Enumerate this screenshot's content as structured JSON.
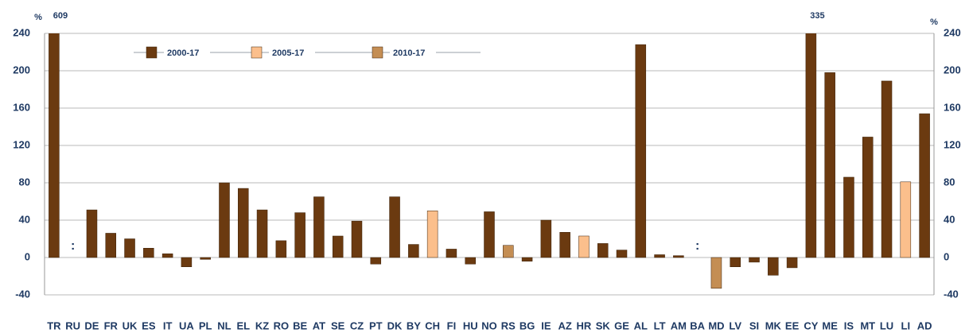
{
  "chart_data": {
    "type": "bar",
    "y_label": "%",
    "y2_label": "%",
    "categories": [
      "TR",
      "RU",
      "DE",
      "FR",
      "UK",
      "ES",
      "IT",
      "UA",
      "PL",
      "NL",
      "EL",
      "KZ",
      "RO",
      "BE",
      "AT",
      "SE",
      "CZ",
      "PT",
      "DK",
      "BY",
      "CH",
      "FI",
      "HU",
      "NO",
      "RS",
      "BG",
      "IE",
      "AZ",
      "HR",
      "SK",
      "GE",
      "AL",
      "LT",
      "AM",
      "BA",
      "MD",
      "LV",
      "SI",
      "MK",
      "EE",
      "CY",
      "ME",
      "IS",
      "MT",
      "LU",
      "LI",
      "AD"
    ],
    "series": [
      {
        "name": "2000-17",
        "color": "#6b3a10",
        "values": [
          609,
          null,
          51,
          26,
          20,
          10,
          4,
          -10,
          -2,
          80,
          74,
          51,
          18,
          48,
          65,
          23,
          39,
          -7,
          65,
          14,
          null,
          9,
          -7,
          49,
          null,
          -4,
          40,
          27,
          null,
          15,
          8,
          228,
          3,
          2,
          null,
          null,
          -10,
          -5,
          -19,
          -11,
          335,
          198,
          86,
          129,
          189,
          null,
          154
        ],
        "value_labels": [
          "609",
          null,
          null,
          null,
          null,
          null,
          null,
          null,
          null,
          null,
          null,
          null,
          null,
          null,
          null,
          null,
          null,
          null,
          null,
          null,
          null,
          null,
          null,
          null,
          null,
          null,
          null,
          null,
          null,
          null,
          null,
          null,
          null,
          null,
          null,
          null,
          null,
          null,
          null,
          null,
          "335",
          null,
          null,
          null,
          null,
          null,
          null
        ]
      },
      {
        "name": "2005-17",
        "color": "#fbbf8c",
        "values": [
          null,
          null,
          null,
          null,
          null,
          null,
          null,
          null,
          null,
          null,
          null,
          null,
          null,
          null,
          null,
          null,
          null,
          null,
          null,
          null,
          50,
          null,
          null,
          null,
          null,
          null,
          null,
          null,
          23,
          null,
          null,
          null,
          null,
          null,
          null,
          null,
          null,
          null,
          null,
          null,
          null,
          null,
          null,
          null,
          null,
          81,
          null
        ]
      },
      {
        "name": "2010-17",
        "color": "#c48e54",
        "values": [
          null,
          null,
          null,
          null,
          null,
          null,
          null,
          null,
          null,
          null,
          null,
          null,
          null,
          null,
          null,
          null,
          null,
          null,
          null,
          null,
          null,
          null,
          null,
          null,
          13,
          null,
          null,
          null,
          null,
          null,
          null,
          null,
          null,
          null,
          null,
          -33,
          null,
          null,
          null,
          null,
          null,
          null,
          null,
          null,
          null,
          null,
          null
        ]
      }
    ],
    "annotations": [
      {
        "category": "RU",
        "text": ":"
      },
      {
        "category": "BA",
        "text": ":"
      }
    ],
    "ylim": [
      -40,
      240
    ],
    "yticks": [
      -40,
      0,
      40,
      80,
      120,
      160,
      200,
      240
    ],
    "y2lim": [
      -40,
      240
    ],
    "y2ticks": [
      -40,
      0,
      40,
      80,
      120,
      160,
      200,
      240
    ],
    "grid": true
  }
}
